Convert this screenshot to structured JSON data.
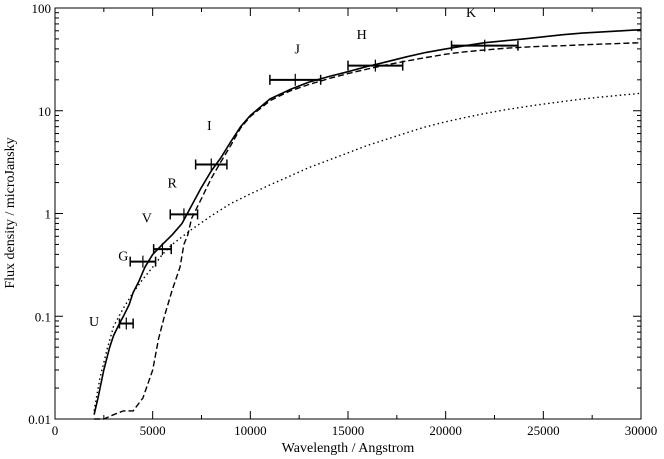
{
  "chart_data": {
    "type": "line",
    "title": "",
    "xlabel": "Wavelength / Angstrom",
    "ylabel": "Flux density / microJansky",
    "x_range": [
      0,
      30000
    ],
    "y_range": [
      0.01,
      100
    ],
    "y_scale": "log",
    "grid": false,
    "legend": "none",
    "x_ticks": [
      {
        "value": 0,
        "label": "0"
      },
      {
        "value": 5000,
        "label": "5000"
      },
      {
        "value": 10000,
        "label": "10000"
      },
      {
        "value": 15000,
        "label": "15000"
      },
      {
        "value": 20000,
        "label": "20000"
      },
      {
        "value": 25000,
        "label": "25000"
      },
      {
        "value": 30000,
        "label": "30000"
      }
    ],
    "y_ticks": [
      {
        "value": 0.01,
        "label": "0.01"
      },
      {
        "value": 0.1,
        "label": "0.1"
      },
      {
        "value": 1,
        "label": "1"
      },
      {
        "value": 10,
        "label": "10"
      },
      {
        "value": 100,
        "label": "100"
      }
    ],
    "series": [
      {
        "style": "solid",
        "x": [
          2000,
          2200,
          2500,
          2800,
          3000,
          3300,
          3500,
          3800,
          4000,
          4300,
          4600,
          5000,
          5500,
          6000,
          6500,
          7000,
          7500,
          8000,
          8500,
          9000,
          9500,
          10000,
          11000,
          12000,
          13000,
          14000,
          15000,
          16000,
          17000,
          18000,
          19000,
          20000,
          21000,
          22000,
          23000,
          24000,
          25000,
          26000,
          27000,
          28000,
          29000,
          30000
        ],
        "y": [
          0.011,
          0.016,
          0.03,
          0.05,
          0.065,
          0.085,
          0.1,
          0.13,
          0.17,
          0.22,
          0.3,
          0.4,
          0.5,
          0.62,
          0.8,
          1.2,
          1.8,
          2.6,
          3.5,
          5.0,
          7.0,
          9.0,
          13.0,
          16.0,
          19.0,
          21.5,
          24.0,
          27.0,
          30.0,
          33.5,
          37.0,
          40.0,
          43.0,
          46.0,
          48.0,
          50.0,
          52.5,
          55.0,
          57.0,
          58.5,
          60.0,
          61.5
        ]
      },
      {
        "style": "dashed",
        "x": [
          2000,
          2500,
          3000,
          3500,
          4000,
          4500,
          5000,
          5300,
          5600,
          6000,
          6400,
          6600,
          6800,
          7000,
          7500,
          8000,
          8500,
          9000,
          9500,
          10000,
          11000,
          12000,
          13000,
          14000,
          15000,
          16000,
          17000,
          18000,
          19000,
          20000,
          21000,
          22000,
          23000,
          24000,
          25000,
          26000,
          27000,
          28000,
          29000,
          30000
        ],
        "y": [
          0.01,
          0.01,
          0.011,
          0.012,
          0.012,
          0.016,
          0.03,
          0.06,
          0.1,
          0.18,
          0.3,
          0.5,
          0.62,
          0.9,
          1.4,
          2.2,
          3.2,
          4.6,
          6.8,
          8.8,
          12.5,
          15.5,
          18.0,
          20.5,
          23.0,
          25.5,
          28.0,
          30.5,
          33.0,
          35.5,
          37.5,
          39.0,
          40.5,
          41.5,
          42.5,
          43.0,
          43.8,
          44.5,
          45.2,
          46.0
        ]
      },
      {
        "style": "dotted",
        "x": [
          2000,
          2300,
          2700,
          3000,
          3500,
          4000,
          4500,
          5000,
          5500,
          6000,
          7000,
          8000,
          9000,
          10000,
          11000,
          12000,
          13000,
          14000,
          15000,
          16000,
          17000,
          18000,
          19000,
          20000,
          21000,
          22000,
          23000,
          24000,
          25000,
          26000,
          27000,
          28000,
          29000,
          30000
        ],
        "y": [
          0.012,
          0.025,
          0.05,
          0.08,
          0.12,
          0.17,
          0.23,
          0.3,
          0.4,
          0.5,
          0.7,
          0.95,
          1.25,
          1.55,
          1.9,
          2.3,
          2.8,
          3.3,
          3.9,
          4.6,
          5.3,
          6.1,
          7.0,
          7.8,
          8.6,
          9.4,
          10.2,
          10.9,
          11.6,
          12.3,
          13.0,
          13.6,
          14.2,
          14.8
        ]
      }
    ],
    "photometry": [
      {
        "band": "U",
        "x": 3650,
        "y": 0.085,
        "x_err": 350
      },
      {
        "band": "G",
        "x": 4500,
        "y": 0.34,
        "x_err": 650
      },
      {
        "band": "V",
        "x": 5500,
        "y": 0.45,
        "x_err": 450
      },
      {
        "band": "R",
        "x": 6600,
        "y": 0.98,
        "x_err": 700
      },
      {
        "band": "I",
        "x": 8000,
        "y": 3.0,
        "x_err": 800
      },
      {
        "band": "J",
        "x": 12300,
        "y": 20.0,
        "x_err": 1300
      },
      {
        "band": "H",
        "x": 16400,
        "y": 27.5,
        "x_err": 1400
      },
      {
        "band": "K",
        "x": 22000,
        "y": 43.0,
        "x_err": 1700
      }
    ],
    "band_labels": [
      {
        "text": "U",
        "x": 2000,
        "y": 0.08
      },
      {
        "text": "G",
        "x": 3500,
        "y": 0.35
      },
      {
        "text": "V",
        "x": 4700,
        "y": 0.82
      },
      {
        "text": "R",
        "x": 6000,
        "y": 1.8
      },
      {
        "text": "I",
        "x": 7900,
        "y": 6.5
      },
      {
        "text": "J",
        "x": 12400,
        "y": 36
      },
      {
        "text": "H",
        "x": 15700,
        "y": 50
      },
      {
        "text": "K",
        "x": 21300,
        "y": 82
      }
    ]
  }
}
